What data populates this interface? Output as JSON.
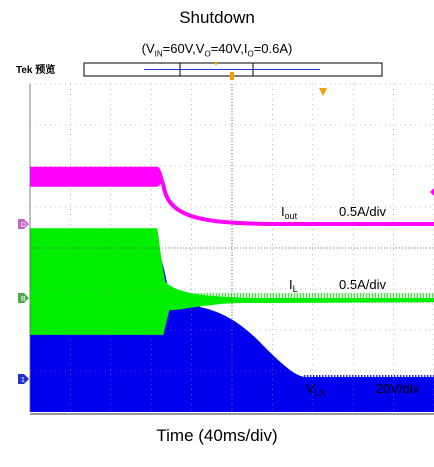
{
  "chart_data": {
    "type": "line",
    "title": "Shutdown",
    "conditions": {
      "vin": "60V",
      "vo": "40V",
      "io": "0.6A"
    },
    "instrument_label": "Tek 预览",
    "xlabel": "Time (40ms/div)",
    "x_divisions": 10,
    "y_divisions": 8,
    "grid": true,
    "series": [
      {
        "name": "Iout",
        "scale": "0.5A/div",
        "color": "#ff00ff",
        "marker": "D",
        "label_main": "I",
        "label_sub": "out",
        "before_level_A": 0.65,
        "after_level_A": 0.0,
        "drop_time_div": 3.25
      },
      {
        "name": "IL",
        "scale": "0.5A/div",
        "color": "#00ee00",
        "marker": "B",
        "label_main": "I",
        "label_sub": "L",
        "envelope_high_A": 0.85,
        "envelope_low_A": -0.45,
        "after_level_A": 0.0,
        "drop_time_div": 3.3
      },
      {
        "name": "VLX",
        "scale": "20V/div",
        "color": "#0000ee",
        "marker": "1",
        "label_main": "V",
        "label_sub": "LX",
        "envelope_high_V": 60,
        "drop_time_div": 3.3,
        "plateau_V": 40,
        "plateau_end_div": 4.7,
        "decay_end_div": 6.8,
        "final_level_V": 0
      }
    ]
  },
  "cond_labels": {
    "vin_main": "V",
    "vin_sub": "IN",
    "vo_main": "V",
    "vo_sub": "O",
    "io_main": "I",
    "io_sub": "O"
  }
}
